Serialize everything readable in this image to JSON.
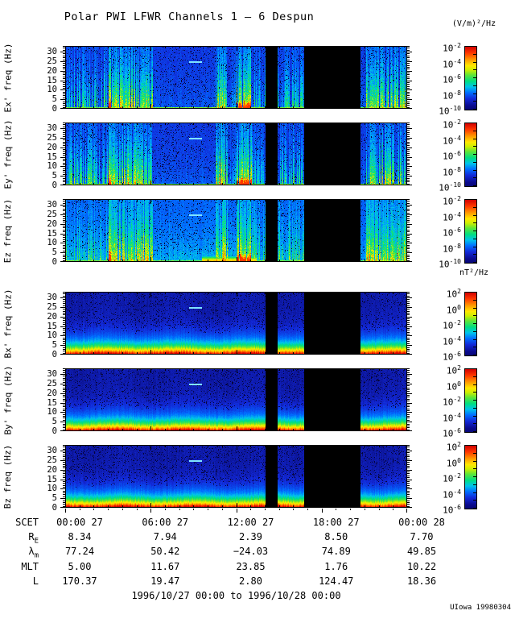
{
  "title": "Polar PWI LFWR Channels 1 — 6 Despun",
  "date_range": "1996/10/27 00:00 to 1996/10/28 00:00",
  "credit": "UIowa 19980304",
  "chart_data": {
    "type": "heatmap",
    "subtype": "spectrogram",
    "x_axis": {
      "ticks": [
        "00:00 27",
        "06:00 27",
        "12:00 27",
        "18:00 27",
        "00:00 28"
      ],
      "hours_span": 24
    },
    "y_axis": {
      "ticks": [
        0,
        5,
        10,
        15,
        20,
        25,
        30
      ],
      "ylim": [
        0,
        33
      ],
      "unit": "Hz"
    },
    "panels": [
      {
        "id": "ex",
        "label": "Ex' freq (Hz)",
        "kind": "E",
        "seed": 11
      },
      {
        "id": "ey",
        "label": "Ey' freq (Hz)",
        "kind": "E",
        "seed": 29
      },
      {
        "id": "ez",
        "label": "Ez freq (Hz)",
        "kind": "E",
        "seed": 47,
        "bright": true
      },
      {
        "id": "bx",
        "label": "Bx' freq (Hz)",
        "kind": "B",
        "seed": 61
      },
      {
        "id": "by",
        "label": "By' freq (Hz)",
        "kind": "B",
        "seed": 79
      },
      {
        "id": "bz",
        "label": "Bz freq (Hz)",
        "kind": "B",
        "seed": 97
      }
    ],
    "colorbar_e": {
      "unit": "(V/m)²/Hz",
      "base": "10",
      "exponents": [
        "-2",
        "-4",
        "-6",
        "-8",
        "-10"
      ]
    },
    "colorbar_b": {
      "unit": "nT²/Hz",
      "base": "10",
      "exponents": [
        "2",
        "0",
        "-2",
        "-4",
        "-6"
      ]
    },
    "data_gaps": [
      [
        0.585,
        0.62
      ],
      [
        0.698,
        0.862
      ]
    ],
    "dash_feature": {
      "freq_hz": 25,
      "start": 0.362,
      "end": 0.4
    },
    "emission_regions": [
      {
        "s": 0.0,
        "e": 0.125,
        "a": 0.55,
        "d": 0.55
      },
      {
        "s": 0.125,
        "e": 0.133,
        "a": 1.0,
        "d": 1.0,
        "hot": true
      },
      {
        "s": 0.133,
        "e": 0.255,
        "a": 0.78,
        "d": 0.85
      },
      {
        "s": 0.255,
        "e": 0.44,
        "a": 0.1,
        "d": 0.3
      },
      {
        "s": 0.44,
        "e": 0.475,
        "a": 0.82,
        "d": 0.9
      },
      {
        "s": 0.475,
        "e": 0.5,
        "a": 0.3,
        "d": 0.5
      },
      {
        "s": 0.5,
        "e": 0.545,
        "a": 0.85,
        "d": 0.92,
        "hot": true
      },
      {
        "s": 0.545,
        "e": 0.585,
        "a": 0.45,
        "d": 0.55
      },
      {
        "s": 0.62,
        "e": 0.698,
        "a": 0.5,
        "d": 0.6
      },
      {
        "s": 0.862,
        "e": 0.878,
        "a": 0.15,
        "d": 0.3
      },
      {
        "s": 0.878,
        "e": 1.0,
        "a": 0.72,
        "d": 0.8
      }
    ],
    "hot_bottom_region": [
      0.4,
      0.56
    ]
  },
  "ephemeris": {
    "rows": [
      {
        "label": "SCET",
        "sub": "",
        "values": [
          "00:00 27",
          "06:00 27",
          "12:00 27",
          "18:00 27",
          "00:00 28"
        ]
      },
      {
        "label": "R",
        "sub": "E",
        "values": [
          "8.34",
          "7.94",
          "2.39",
          "8.50",
          "7.70"
        ]
      },
      {
        "label": "λ",
        "sub": "m",
        "values": [
          "77.24",
          "50.42",
          "−24.03",
          "74.89",
          "49.85"
        ]
      },
      {
        "label": "MLT",
        "sub": "",
        "values": [
          "5.00",
          "11.67",
          "23.85",
          "1.76",
          "10.22"
        ]
      },
      {
        "label": "L",
        "sub": "",
        "values": [
          "170.37",
          "19.47",
          "2.80",
          "124.47",
          "18.36"
        ]
      }
    ]
  }
}
